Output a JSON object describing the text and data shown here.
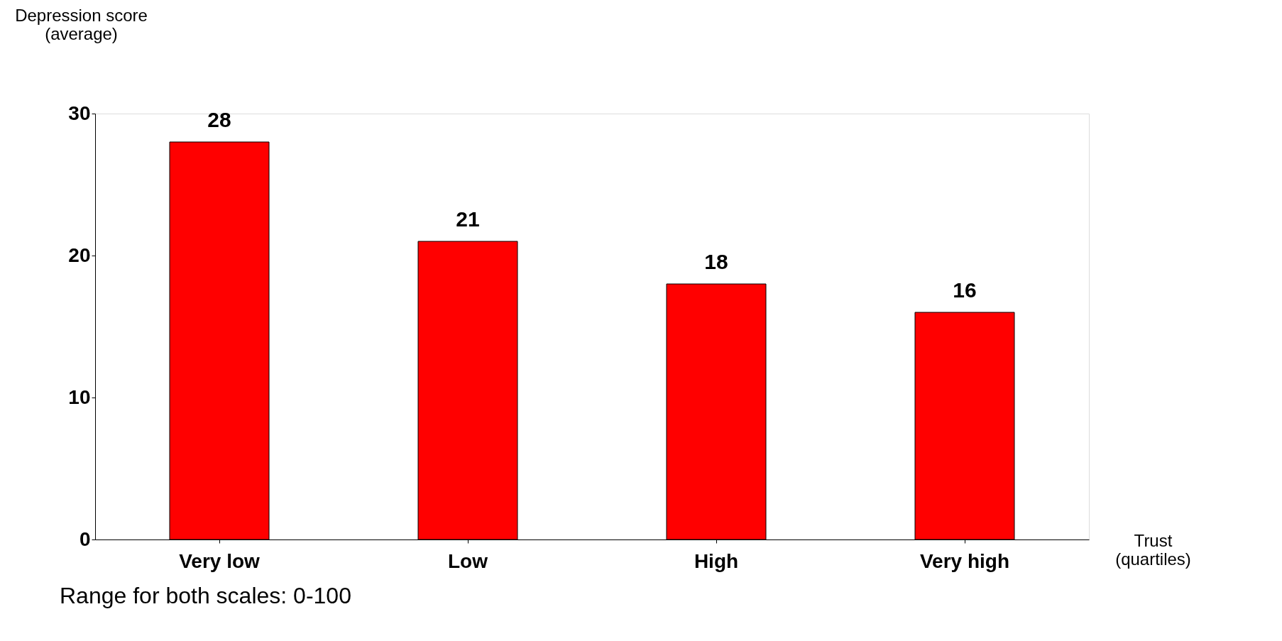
{
  "chart_data": {
    "type": "bar",
    "ylabel": "Depression score\n(average)",
    "xlabel": "Trust\n(quartiles)",
    "categories": [
      "Very low",
      "Low",
      "High",
      "Very high"
    ],
    "values": [
      28,
      21,
      18,
      16
    ],
    "color": "#ff0000",
    "ylim": [
      0,
      30
    ],
    "yticks": [
      0,
      10,
      20,
      30
    ],
    "grid": false,
    "data_labels": true,
    "annotations": [
      "Range for both scales: 0-100"
    ]
  }
}
